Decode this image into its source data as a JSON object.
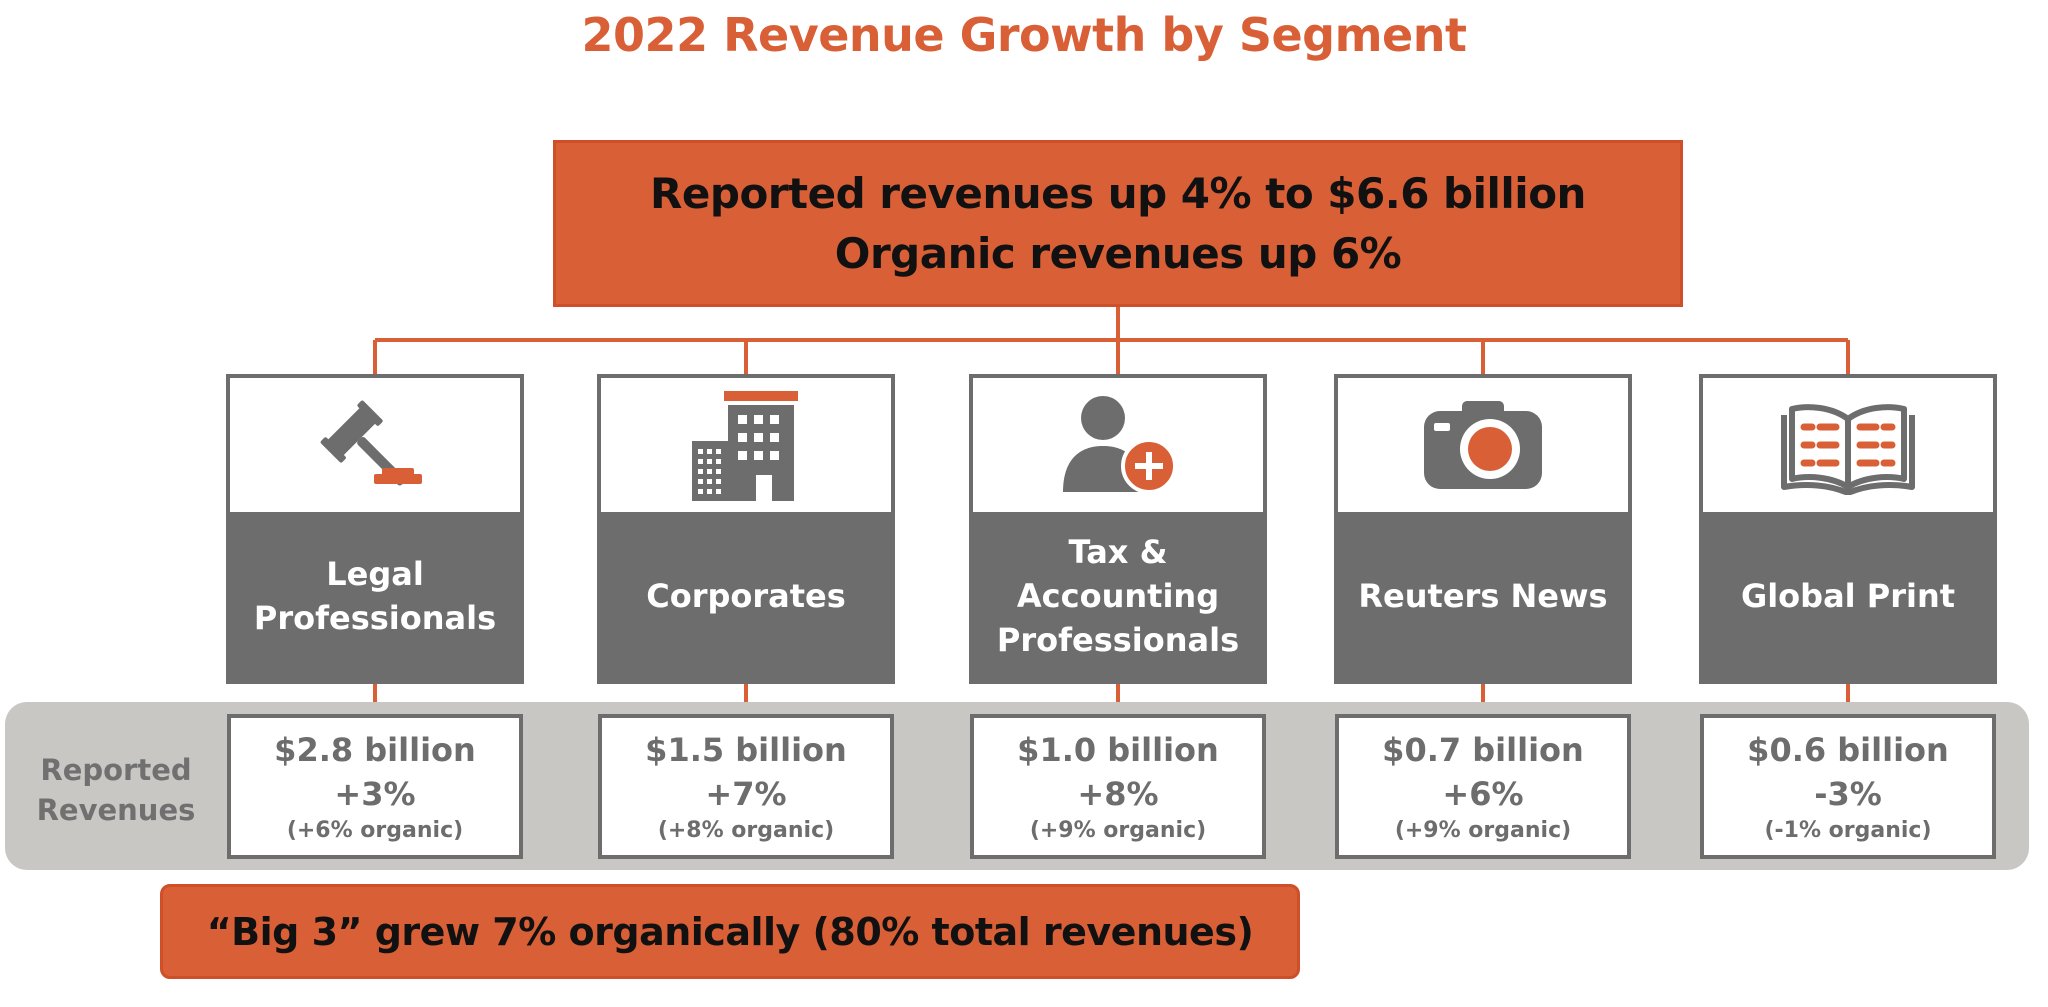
{
  "title": "2022 Revenue Growth by Segment",
  "summary": {
    "line1": "Reported revenues up 4% to $6.6 billion",
    "line2": "Organic revenues up 6%"
  },
  "band_label": {
    "line1": "Reported",
    "line2": "Revenues"
  },
  "segments": [
    {
      "icon": "gavel-icon",
      "name_line1": "Legal",
      "name_line2": "Professionals",
      "amount": "$2.8 billion",
      "growth": "+3%",
      "organic": "(+6% organic)"
    },
    {
      "icon": "office-building-icon",
      "name_line1": "Corporates",
      "name_line2": "",
      "amount": "$1.5 billion",
      "growth": "+7%",
      "organic": "(+8% organic)"
    },
    {
      "icon": "person-plus-icon",
      "name_line1": "Tax & Accounting",
      "name_line2": "Professionals",
      "amount": "$1.0 billion",
      "growth": "+8%",
      "organic": "(+9% organic)"
    },
    {
      "icon": "camera-icon",
      "name_line1": "Reuters News",
      "name_line2": "",
      "amount": "$0.7 billion",
      "growth": "+6%",
      "organic": "(+9% organic)"
    },
    {
      "icon": "open-book-icon",
      "name_line1": "Global Print",
      "name_line2": "",
      "amount": "$0.6 billion",
      "growth": "-3%",
      "organic": "(-1% organic)"
    }
  ],
  "footer_note": "“Big 3” grew 7% organically (80% total revenues)",
  "colors": {
    "accent": "#d95f36",
    "gray": "#6d6d6d",
    "band": "#c8c7c4"
  }
}
